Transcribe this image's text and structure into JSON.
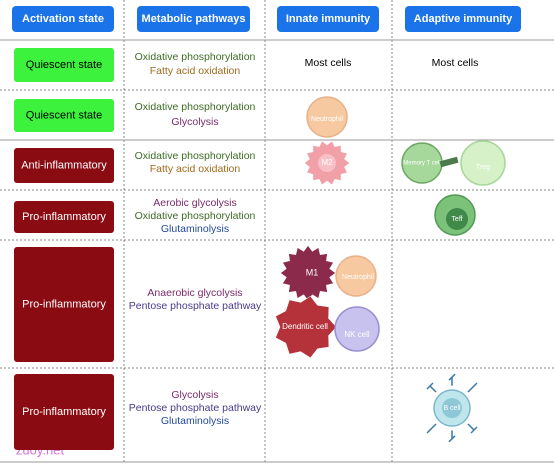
{
  "header": [
    "Activation state",
    "Metabolic pathways",
    "Innate immunity",
    "Adaptive immunity"
  ],
  "rows": [
    {
      "state": "Quiescent state",
      "pathways": [
        "Oxidative phosphorylation",
        "Fatty acid oxidation"
      ],
      "innate": [
        "Most cells"
      ],
      "adaptive": [
        "Most cells"
      ]
    },
    {
      "state": "Quiescent state",
      "pathways": [
        "Oxidative phosphorylation",
        "Glycolysis"
      ],
      "innate": [
        "Neutrophil"
      ],
      "adaptive": []
    },
    {
      "state": "Anti-inflammatory",
      "pathways": [
        "Oxidative phosphorylation",
        "Fatty acid oxidation"
      ],
      "innate": [
        "M2"
      ],
      "adaptive": [
        "Memory T cell",
        "Treg"
      ]
    },
    {
      "state": "Pro-inflammatory",
      "pathways": [
        "Aerobic glycolysis",
        "Oxidative phosphorylation",
        "Glutaminolysis"
      ],
      "innate": [],
      "adaptive": [
        "Teff"
      ]
    },
    {
      "state": "Pro-inflammatory",
      "pathways": [
        "Anaerobic glycolysis",
        "Pentose phosphate pathway"
      ],
      "innate": [
        "M1",
        "Neutrophil",
        "Dendritic cell",
        "NK cell"
      ],
      "adaptive": []
    },
    {
      "state": "Pro-inflammatory",
      "pathways": [
        "Glycolysis",
        "Pentose phosphate pathway",
        "Glutaminolysis"
      ],
      "innate": [],
      "adaptive": [
        "B cell"
      ]
    }
  ],
  "watermark": "zuoy.net"
}
